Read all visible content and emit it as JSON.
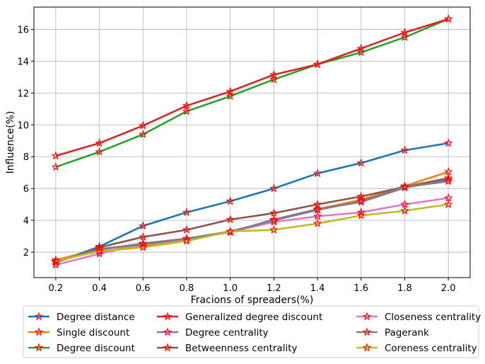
{
  "chart_data": {
    "type": "line",
    "title": "",
    "xlabel": "Fracions of spreaders(%)",
    "ylabel": "Influence(%)",
    "xlim": [
      0.1,
      2.1
    ],
    "ylim": [
      0.4,
      17.4
    ],
    "xticks": [
      0.2,
      0.4,
      0.6,
      0.8,
      1.0,
      1.2,
      1.4,
      1.6,
      1.8,
      2.0
    ],
    "xtick_labels": [
      "0.2",
      "0.4",
      "0.6",
      "0.8",
      "1.0",
      "1.2",
      "1.4",
      "1.6",
      "1.8",
      "2.0"
    ],
    "yticks": [
      2,
      4,
      6,
      8,
      10,
      12,
      14,
      16
    ],
    "ytick_labels": [
      "2",
      "4",
      "6",
      "8",
      "10",
      "12",
      "14",
      "16"
    ],
    "grid": true,
    "legend_position": "bottom",
    "legend_columns": 3,
    "marker": "star",
    "marker_color": "#ff0000",
    "x": [
      0.2,
      0.4,
      0.6,
      0.8,
      1.0,
      1.2,
      1.4,
      1.6,
      1.8,
      2.0
    ],
    "series": [
      {
        "name": "Degree distance",
        "color": "#1f77b4",
        "values": [
          1.35,
          2.35,
          3.65,
          4.5,
          5.2,
          6.0,
          6.95,
          7.6,
          8.4,
          8.85
        ]
      },
      {
        "name": "Single discount",
        "color": "#ff7f0e",
        "values": [
          1.5,
          2.2,
          2.4,
          2.8,
          3.3,
          4.0,
          4.7,
          5.3,
          6.15,
          7.05
        ]
      },
      {
        "name": "Degree discount",
        "color": "#2ca02c",
        "values": [
          7.35,
          8.3,
          9.4,
          10.85,
          11.8,
          12.85,
          13.8,
          14.55,
          15.5,
          16.65
        ]
      },
      {
        "name": "Generalized degree discount",
        "color": "#d62728",
        "values": [
          8.05,
          8.85,
          9.95,
          11.2,
          12.1,
          13.15,
          13.8,
          14.8,
          15.8,
          16.65
        ]
      },
      {
        "name": "Degree centrality",
        "color": "#9467bd",
        "values": [
          1.4,
          2.15,
          2.55,
          2.85,
          3.25,
          4.05,
          4.7,
          5.15,
          6.05,
          6.55
        ]
      },
      {
        "name": "Betweenness centrality",
        "color": "#8c564b",
        "values": [
          1.35,
          2.3,
          2.95,
          3.4,
          4.05,
          4.45,
          5.0,
          5.5,
          6.1,
          6.65
        ]
      },
      {
        "name": "Closeness centrality",
        "color": "#e377c2",
        "values": [
          1.2,
          1.9,
          2.5,
          2.8,
          3.25,
          3.9,
          4.25,
          4.5,
          5.0,
          5.4
        ]
      },
      {
        "name": "Pagerank",
        "color": "#7f7f7f",
        "values": [
          1.4,
          2.2,
          2.5,
          2.85,
          3.3,
          4.0,
          4.65,
          5.2,
          6.1,
          6.45
        ]
      },
      {
        "name": "Coreness centrality",
        "color": "#bcbd22",
        "values": [
          1.45,
          2.05,
          2.3,
          2.7,
          3.3,
          3.4,
          3.8,
          4.3,
          4.6,
          5.0
        ]
      }
    ]
  }
}
